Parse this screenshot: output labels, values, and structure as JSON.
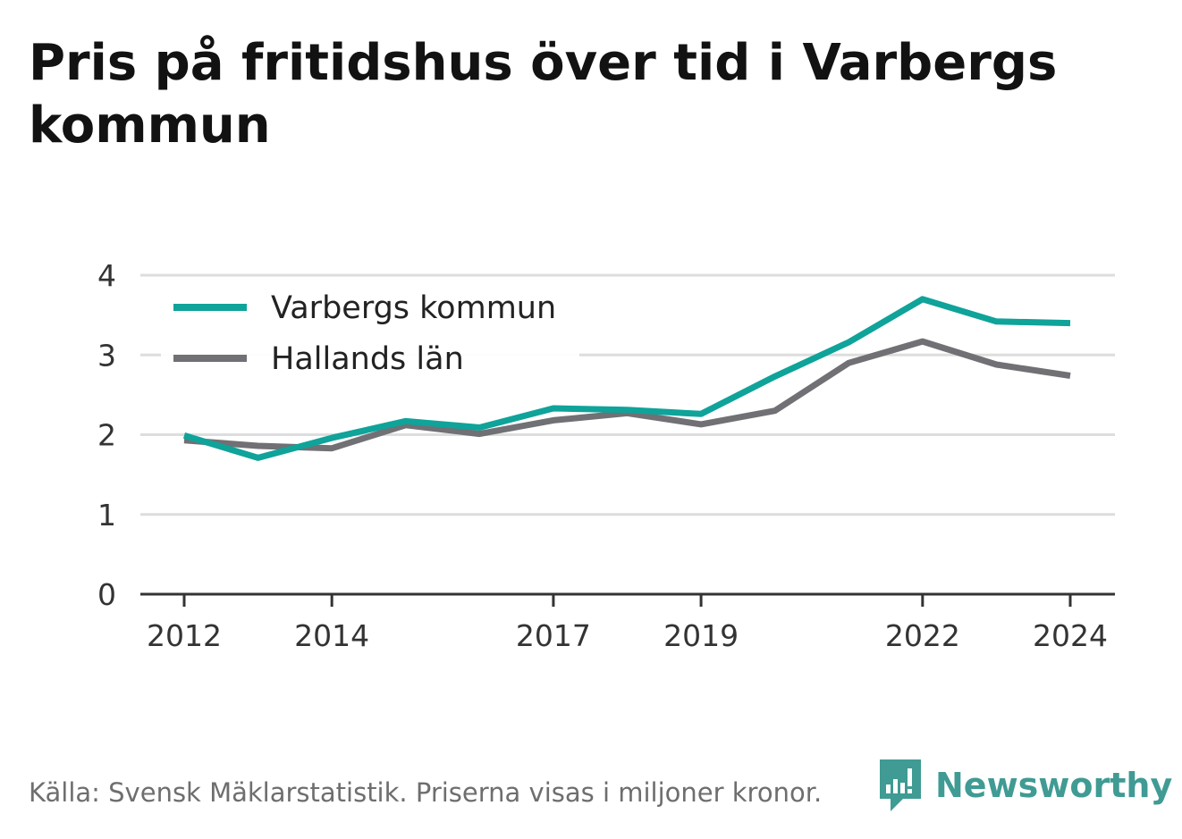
{
  "title": "Pris på fritidshus över tid i Varbergs kommun",
  "source": "Källa: Svensk Mäklarstatistik. Priserna visas i miljoner kronor.",
  "brand": {
    "name": "Newsworthy",
    "icon": "newsworthy-logo-icon",
    "color": "#3f9b93"
  },
  "chart_data": {
    "type": "line",
    "x": [
      2012,
      2013,
      2014,
      2015,
      2016,
      2017,
      2018,
      2019,
      2020,
      2021,
      2022,
      2023,
      2024
    ],
    "x_tick_labels": [
      "2012",
      "2014",
      "2017",
      "2019",
      "2022",
      "2024"
    ],
    "y_ticks": [
      "0",
      "1",
      "2",
      "3",
      "4"
    ],
    "ylim": [
      0,
      4
    ],
    "grid": true,
    "legend_position": "top-left",
    "series": [
      {
        "name": "Varbergs kommun",
        "color": "#0fa39a",
        "values": [
          1.99,
          1.71,
          1.96,
          2.17,
          2.09,
          2.33,
          2.31,
          2.26,
          2.73,
          3.16,
          3.7,
          3.42,
          3.4
        ]
      },
      {
        "name": "Hallands län",
        "color": "#707075",
        "values": [
          1.93,
          1.86,
          1.83,
          2.12,
          2.01,
          2.18,
          2.27,
          2.13,
          2.3,
          2.9,
          3.17,
          2.88,
          2.74
        ]
      }
    ]
  }
}
